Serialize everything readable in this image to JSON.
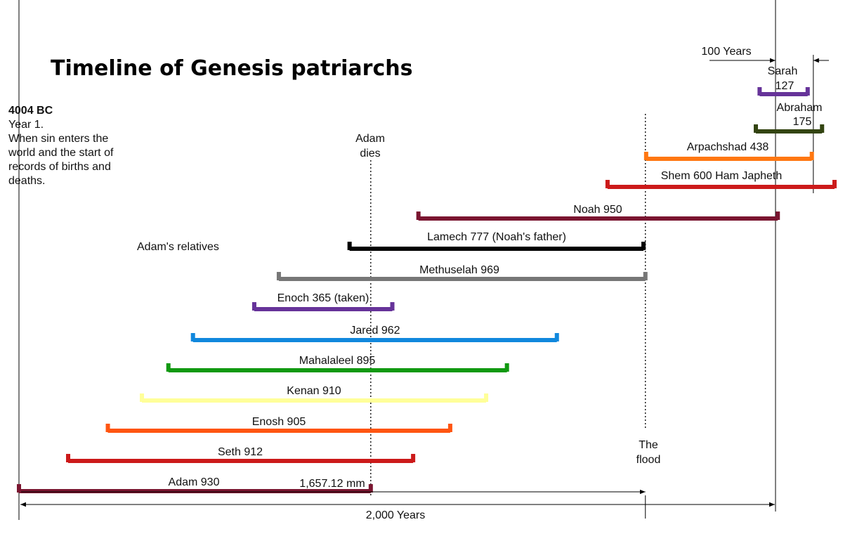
{
  "chart_data": {
    "type": "timeline",
    "title": "Timeline of Genesis patriarchs",
    "x_unit": "years",
    "xlim": [
      0,
      2150
    ],
    "intro": {
      "heading": "4004 BC",
      "lines": [
        "Year 1.",
        "When sin enters the",
        "world and the start of",
        "records of births and",
        "deaths."
      ]
    },
    "group_label": "Adam's relatives",
    "bars": [
      {
        "id": "adam",
        "label": "Adam 930",
        "start": 0,
        "end": 930,
        "color": "#7a1530"
      },
      {
        "id": "seth",
        "label": "Seth 912",
        "start": 130,
        "end": 1042,
        "color": "#cc1a1a"
      },
      {
        "id": "enosh",
        "label": "Enosh 905",
        "start": 235,
        "end": 1140,
        "color": "#ff5511"
      },
      {
        "id": "kenan",
        "label": "Kenan 910",
        "start": 325,
        "end": 1235,
        "color": "#ffff99"
      },
      {
        "id": "mahalaleel",
        "label": "Mahalaleel 895",
        "start": 395,
        "end": 1290,
        "color": "#119911"
      },
      {
        "id": "jared",
        "label": "Jared 962",
        "start": 460,
        "end": 1422,
        "color": "#1188dd"
      },
      {
        "id": "enoch",
        "label": "Enoch 365 (taken)",
        "start": 622,
        "end": 987,
        "color": "#663399"
      },
      {
        "id": "methuselah",
        "label": "Methuselah 969",
        "start": 687,
        "end": 1656,
        "color": "#777777"
      },
      {
        "id": "lamech",
        "label": "Lamech 777 (Noah's father)",
        "start": 874,
        "end": 1651,
        "color": "#000000"
      },
      {
        "id": "noah",
        "label": "Noah 950",
        "start": 1056,
        "end": 2006,
        "color": "#7a1530"
      },
      {
        "id": "shem",
        "label": "Shem 600 Ham Japheth",
        "start": 1556,
        "end": 2156,
        "color": "#cc1a1a"
      },
      {
        "id": "arpachshad",
        "label": "Arpachshad 438",
        "start": 1658,
        "end": 2096,
        "color": "#ff7711"
      },
      {
        "id": "abraham",
        "label": "Abraham",
        "label2": "175",
        "start": 1948,
        "end": 2123,
        "color": "#334411"
      },
      {
        "id": "sarah",
        "label": "Sarah",
        "label2": "127",
        "start": 1958,
        "end": 2085,
        "color": "#663399"
      }
    ],
    "events": [
      {
        "id": "adam-dies",
        "label": "Adam",
        "label2": "dies",
        "x": 930
      },
      {
        "id": "the-flood",
        "label": "The",
        "label2": "flood",
        "x": 1656
      }
    ],
    "annotations": {
      "measure": "1,657.12 mm",
      "span_label": "2,000 Years",
      "span_end": 2000,
      "century_label": "100 Years",
      "century_start": 2000,
      "century_end": 2100
    }
  }
}
